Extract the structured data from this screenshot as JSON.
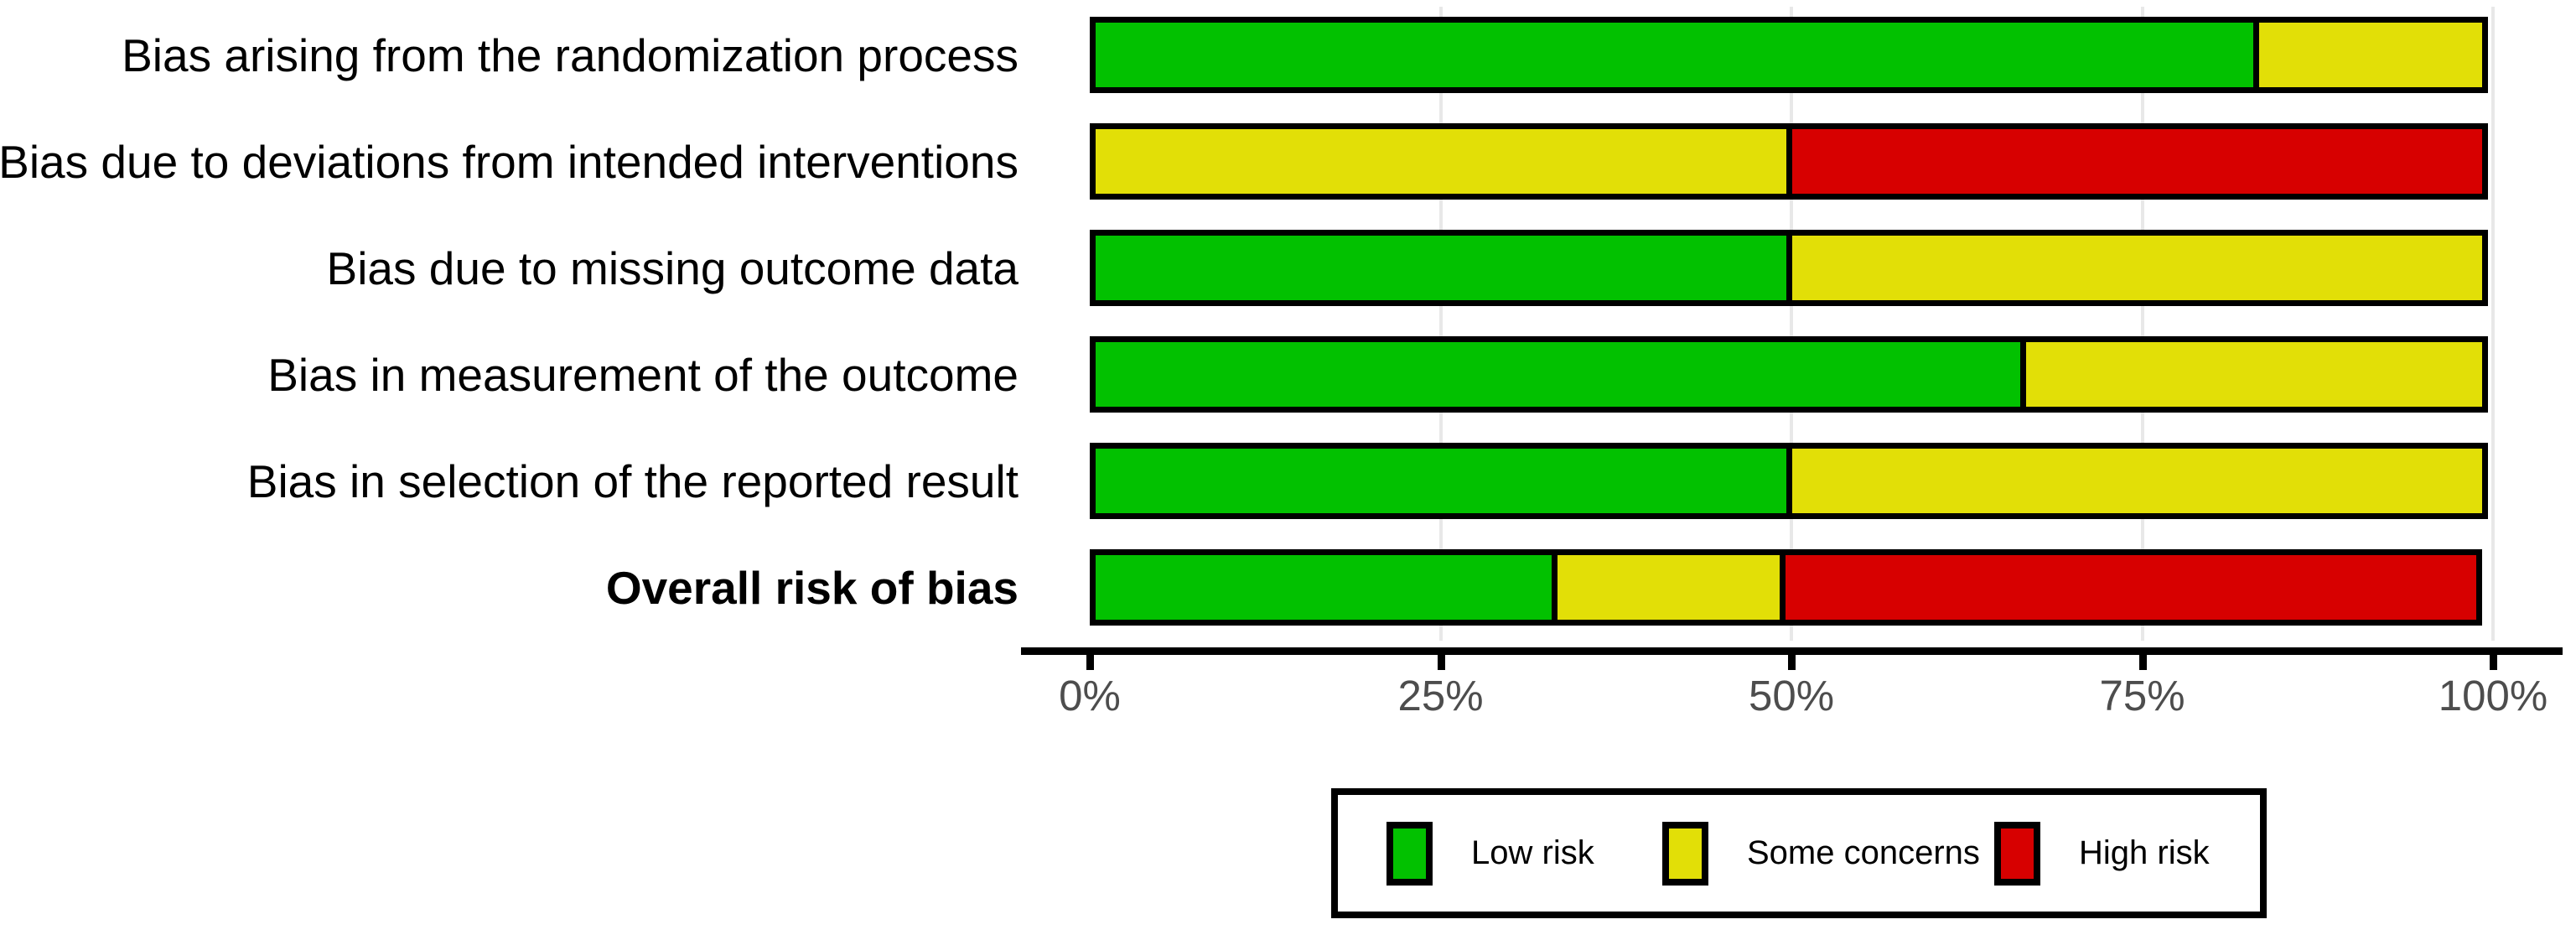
{
  "chart_data": {
    "type": "bar",
    "orientation": "horizontal",
    "stacked": true,
    "unit": "percent",
    "xlim": [
      0,
      100
    ],
    "grid": "faint-vertical",
    "legend_position": "bottom",
    "categories": [
      {
        "label": "Bias arising from the randomization process",
        "bold": false
      },
      {
        "label": "Bias due to deviations from intended interventions",
        "bold": false
      },
      {
        "label": "Bias due to missing outcome data",
        "bold": false
      },
      {
        "label": "Bias in measurement of the outcome",
        "bold": false
      },
      {
        "label": "Bias in selection of the reported result",
        "bold": false
      },
      {
        "label": "Overall risk of bias",
        "bold": true
      }
    ],
    "series": [
      {
        "name": "Low risk",
        "risk": "low",
        "color": "#02C100",
        "values": [
          83.3,
          0,
          50,
          66.7,
          50,
          33.3
        ]
      },
      {
        "name": "Some concerns",
        "risk": "some-concerns",
        "color": "#E2DF07",
        "values": [
          16.7,
          50,
          50,
          33.3,
          50,
          16.7
        ]
      },
      {
        "name": "High risk",
        "risk": "high",
        "color": "#D70000",
        "values": [
          0,
          50,
          0,
          0,
          0,
          50
        ]
      }
    ],
    "x_ticks": [
      {
        "label": "0%",
        "value": 0
      },
      {
        "label": "25%",
        "value": 25
      },
      {
        "label": "50%",
        "value": 50
      },
      {
        "label": "75%",
        "value": 75
      },
      {
        "label": "100%",
        "value": 100
      }
    ]
  },
  "legend": {
    "items": [
      {
        "label": "Low risk",
        "color": "#02C100"
      },
      {
        "label": "Some concerns",
        "color": "#E2DF07"
      },
      {
        "label": "High risk",
        "color": "#D70000"
      }
    ]
  },
  "colors": {
    "low_risk": "#02C100",
    "some_concerns": "#E2DF07",
    "high_risk": "#D70000",
    "axis": "#000000",
    "tick_label": "#4d4d4d",
    "background": "#ffffff"
  }
}
